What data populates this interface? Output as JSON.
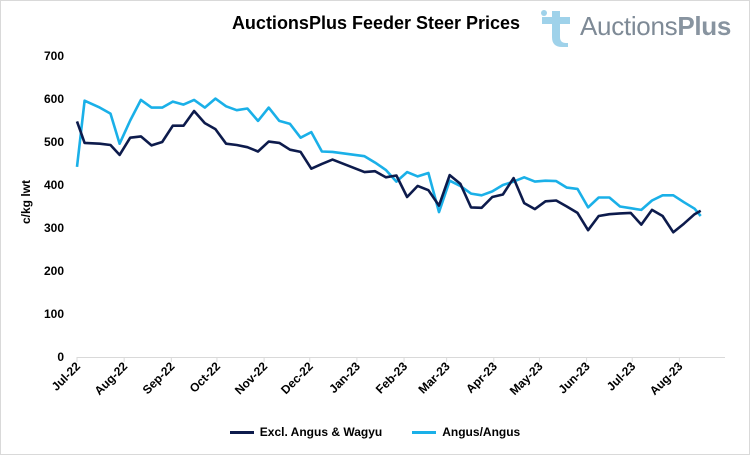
{
  "header": {
    "title": "AuctionsPlus Feeder Steer Prices",
    "logo_text_a": "Auctions",
    "logo_text_b": "Plus"
  },
  "colors": {
    "series_dark": "#0d1b4c",
    "series_light": "#1ab0e8",
    "logo_icon": "#9fd2ea",
    "axis": "#d9d9d9"
  },
  "chart_data": {
    "type": "line",
    "title": "AuctionsPlus Feeder Steer Prices",
    "ylabel": "c/kg lwt",
    "xlabel": "",
    "ylim": [
      0,
      700
    ],
    "yticks": [
      0,
      100,
      200,
      300,
      400,
      500,
      600,
      700
    ],
    "x_tick_labels": [
      "Jul-22",
      "Aug-22",
      "Sep-22",
      "Oct-22",
      "Nov-22",
      "Dec-22",
      "Jan-23",
      "Feb-23",
      "Mar-23",
      "Apr-23",
      "May-23",
      "Jun-23",
      "Jul-23",
      "Aug-23"
    ],
    "x_range": [
      "2022-07-01",
      "2023-08-31"
    ],
    "legend_position": "bottom",
    "grid": false,
    "series": [
      {
        "name": "Excl. Angus & Wagyu",
        "points": [
          [
            "2022-07-01",
            548
          ],
          [
            "2022-07-06",
            498
          ],
          [
            "2022-07-16",
            496
          ],
          [
            "2022-07-23",
            493
          ],
          [
            "2022-07-29",
            470
          ],
          [
            "2022-08-05",
            510
          ],
          [
            "2022-08-12",
            513
          ],
          [
            "2022-08-19",
            492
          ],
          [
            "2022-08-26",
            500
          ],
          [
            "2022-09-02",
            538
          ],
          [
            "2022-09-09",
            538
          ],
          [
            "2022-09-16",
            572
          ],
          [
            "2022-09-23",
            544
          ],
          [
            "2022-09-30",
            530
          ],
          [
            "2022-10-07",
            496
          ],
          [
            "2022-10-14",
            493
          ],
          [
            "2022-10-21",
            488
          ],
          [
            "2022-10-28",
            478
          ],
          [
            "2022-11-04",
            501
          ],
          [
            "2022-11-11",
            498
          ],
          [
            "2022-11-18",
            482
          ],
          [
            "2022-11-25",
            477
          ],
          [
            "2022-12-02",
            438
          ],
          [
            "2022-12-09",
            449
          ],
          [
            "2022-12-16",
            459
          ],
          [
            "2023-01-06",
            430
          ],
          [
            "2023-01-13",
            432
          ],
          [
            "2023-01-20",
            418
          ],
          [
            "2023-01-27",
            422
          ],
          [
            "2023-02-03",
            372
          ],
          [
            "2023-02-10",
            398
          ],
          [
            "2023-02-17",
            388
          ],
          [
            "2023-02-24",
            352
          ],
          [
            "2023-03-03",
            423
          ],
          [
            "2023-03-10",
            403
          ],
          [
            "2023-03-17",
            348
          ],
          [
            "2023-03-24",
            347
          ],
          [
            "2023-03-31",
            372
          ],
          [
            "2023-04-07",
            378
          ],
          [
            "2023-04-14",
            416
          ],
          [
            "2023-04-21",
            358
          ],
          [
            "2023-04-28",
            344
          ],
          [
            "2023-05-05",
            362
          ],
          [
            "2023-05-12",
            364
          ],
          [
            "2023-05-19",
            350
          ],
          [
            "2023-05-26",
            335
          ],
          [
            "2023-06-02",
            295
          ],
          [
            "2023-06-09",
            328
          ],
          [
            "2023-06-16",
            332
          ],
          [
            "2023-06-23",
            334
          ],
          [
            "2023-06-30",
            335
          ],
          [
            "2023-07-07",
            308
          ],
          [
            "2023-07-14",
            342
          ],
          [
            "2023-07-21",
            328
          ],
          [
            "2023-07-28",
            290
          ],
          [
            "2023-08-04",
            310
          ],
          [
            "2023-08-11",
            332
          ],
          [
            "2023-08-15",
            340
          ]
        ]
      },
      {
        "name": "Angus/Angus",
        "points": [
          [
            "2022-07-01",
            442
          ],
          [
            "2022-07-06",
            596
          ],
          [
            "2022-07-16",
            580
          ],
          [
            "2022-07-23",
            566
          ],
          [
            "2022-07-29",
            496
          ],
          [
            "2022-08-05",
            550
          ],
          [
            "2022-08-12",
            598
          ],
          [
            "2022-08-19",
            580
          ],
          [
            "2022-08-26",
            580
          ],
          [
            "2022-09-02",
            594
          ],
          [
            "2022-09-09",
            587
          ],
          [
            "2022-09-16",
            598
          ],
          [
            "2022-09-23",
            580
          ],
          [
            "2022-09-30",
            601
          ],
          [
            "2022-10-07",
            583
          ],
          [
            "2022-10-14",
            574
          ],
          [
            "2022-10-21",
            578
          ],
          [
            "2022-10-28",
            549
          ],
          [
            "2022-11-04",
            580
          ],
          [
            "2022-11-11",
            549
          ],
          [
            "2022-11-18",
            542
          ],
          [
            "2022-11-25",
            510
          ],
          [
            "2022-12-02",
            523
          ],
          [
            "2022-12-09",
            478
          ],
          [
            "2022-12-16",
            477
          ],
          [
            "2023-01-06",
            467
          ],
          [
            "2023-01-13",
            452
          ],
          [
            "2023-01-20",
            435
          ],
          [
            "2023-01-27",
            408
          ],
          [
            "2023-02-03",
            430
          ],
          [
            "2023-02-10",
            420
          ],
          [
            "2023-02-17",
            428
          ],
          [
            "2023-02-24",
            337
          ],
          [
            "2023-03-03",
            410
          ],
          [
            "2023-03-10",
            398
          ],
          [
            "2023-03-17",
            380
          ],
          [
            "2023-03-24",
            376
          ],
          [
            "2023-03-31",
            385
          ],
          [
            "2023-04-07",
            400
          ],
          [
            "2023-04-14",
            408
          ],
          [
            "2023-04-21",
            418
          ],
          [
            "2023-04-28",
            408
          ],
          [
            "2023-05-05",
            410
          ],
          [
            "2023-05-12",
            409
          ],
          [
            "2023-05-19",
            394
          ],
          [
            "2023-05-26",
            391
          ],
          [
            "2023-06-02",
            348
          ],
          [
            "2023-06-09",
            371
          ],
          [
            "2023-06-16",
            371
          ],
          [
            "2023-06-23",
            350
          ],
          [
            "2023-06-30",
            346
          ],
          [
            "2023-07-07",
            342
          ],
          [
            "2023-07-14",
            364
          ],
          [
            "2023-07-21",
            376
          ],
          [
            "2023-07-28",
            376
          ],
          [
            "2023-08-04",
            360
          ],
          [
            "2023-08-11",
            345
          ],
          [
            "2023-08-15",
            328
          ]
        ]
      }
    ]
  }
}
